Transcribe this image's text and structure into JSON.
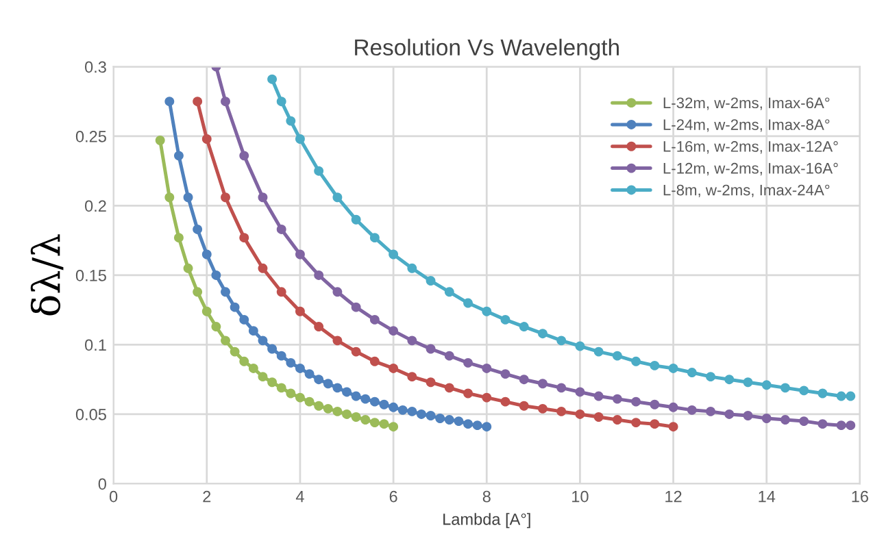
{
  "chart_data": {
    "type": "line",
    "title": "Resolution Vs Wavelength",
    "xlabel": "Lambda [A°]",
    "ylabel": "δλ/λ",
    "xlim": [
      0,
      16
    ],
    "xticks": [
      0,
      2,
      4,
      6,
      8,
      10,
      12,
      14,
      16
    ],
    "ylim": [
      0,
      0.3
    ],
    "yticks": [
      0,
      0.05,
      0.1,
      0.15,
      0.2,
      0.25,
      0.3
    ],
    "grid": true,
    "legend": "top right",
    "marker": "circle",
    "line_style": "solid",
    "series": [
      {
        "name": "L-32m, w-2ms, Imax-6A°",
        "color": "#9bbb59",
        "x": [
          1.0,
          1.2,
          1.4,
          1.6,
          1.8,
          2.0,
          2.2,
          2.4,
          2.6,
          2.8,
          3.0,
          3.2,
          3.4,
          3.6,
          3.8,
          4.0,
          4.2,
          4.4,
          4.6,
          4.8,
          5.0,
          5.2,
          5.4,
          5.6,
          5.8,
          6.0
        ],
        "values": [
          0.247,
          0.206,
          0.177,
          0.155,
          0.138,
          0.124,
          0.113,
          0.103,
          0.095,
          0.088,
          0.083,
          0.077,
          0.073,
          0.069,
          0.065,
          0.062,
          0.059,
          0.056,
          0.054,
          0.052,
          0.05,
          0.048,
          0.046,
          0.044,
          0.043,
          0.041
        ]
      },
      {
        "name": "L-24m, w-2ms, Imax-8A°",
        "color": "#4f81bd",
        "x": [
          1.2,
          1.4,
          1.6,
          1.8,
          2.0,
          2.2,
          2.4,
          2.6,
          2.8,
          3.0,
          3.2,
          3.4,
          3.6,
          3.8,
          4.0,
          4.2,
          4.4,
          4.6,
          4.8,
          5.0,
          5.2,
          5.4,
          5.6,
          5.8,
          6.0,
          6.2,
          6.4,
          6.6,
          6.8,
          7.0,
          7.2,
          7.4,
          7.6,
          7.8,
          8.0
        ],
        "values": [
          0.275,
          0.236,
          0.206,
          0.183,
          0.165,
          0.15,
          0.138,
          0.127,
          0.118,
          0.11,
          0.103,
          0.097,
          0.092,
          0.087,
          0.083,
          0.079,
          0.075,
          0.072,
          0.069,
          0.066,
          0.063,
          0.061,
          0.059,
          0.057,
          0.055,
          0.053,
          0.052,
          0.05,
          0.049,
          0.047,
          0.046,
          0.045,
          0.043,
          0.042,
          0.041
        ]
      },
      {
        "name": "L-16m, w-2ms, Imax-12A°",
        "color": "#c0504d",
        "x": [
          1.8,
          2.0,
          2.4,
          2.8,
          3.2,
          3.6,
          4.0,
          4.4,
          4.8,
          5.2,
          5.6,
          6.0,
          6.4,
          6.8,
          7.2,
          7.6,
          8.0,
          8.4,
          8.8,
          9.2,
          9.6,
          10.0,
          10.4,
          10.8,
          11.2,
          11.6,
          12.0
        ],
        "values": [
          0.275,
          0.248,
          0.206,
          0.177,
          0.155,
          0.138,
          0.124,
          0.113,
          0.103,
          0.095,
          0.088,
          0.083,
          0.077,
          0.073,
          0.069,
          0.065,
          0.062,
          0.059,
          0.056,
          0.054,
          0.052,
          0.05,
          0.048,
          0.046,
          0.044,
          0.043,
          0.041
        ]
      },
      {
        "name": "L-12m, w-2ms, Imax-16A°",
        "color": "#8064a2",
        "x": [
          2.2,
          2.4,
          2.8,
          3.2,
          3.6,
          4.0,
          4.4,
          4.8,
          5.2,
          5.6,
          6.0,
          6.4,
          6.8,
          7.2,
          7.6,
          8.0,
          8.4,
          8.8,
          9.2,
          9.6,
          10.0,
          10.4,
          10.8,
          11.2,
          11.6,
          12.0,
          12.4,
          12.8,
          13.2,
          13.6,
          14.0,
          14.4,
          14.8,
          15.2,
          15.6,
          15.8
        ],
        "values": [
          0.3,
          0.275,
          0.236,
          0.206,
          0.183,
          0.165,
          0.15,
          0.138,
          0.127,
          0.118,
          0.11,
          0.103,
          0.097,
          0.092,
          0.087,
          0.083,
          0.079,
          0.075,
          0.072,
          0.069,
          0.066,
          0.063,
          0.061,
          0.059,
          0.057,
          0.055,
          0.053,
          0.052,
          0.05,
          0.049,
          0.047,
          0.046,
          0.045,
          0.043,
          0.042,
          0.042
        ]
      },
      {
        "name": "L-8m, w-2ms, Imax-24A°",
        "color": "#4bacc6",
        "x": [
          3.4,
          3.6,
          3.8,
          4.0,
          4.4,
          4.8,
          5.2,
          5.6,
          6.0,
          6.4,
          6.8,
          7.2,
          7.6,
          8.0,
          8.4,
          8.8,
          9.2,
          9.6,
          10.0,
          10.4,
          10.8,
          11.2,
          11.6,
          12.0,
          12.4,
          12.8,
          13.2,
          13.6,
          14.0,
          14.4,
          14.8,
          15.2,
          15.6,
          15.8
        ],
        "values": [
          0.291,
          0.275,
          0.261,
          0.248,
          0.225,
          0.206,
          0.19,
          0.177,
          0.165,
          0.155,
          0.146,
          0.138,
          0.13,
          0.124,
          0.118,
          0.113,
          0.108,
          0.103,
          0.099,
          0.095,
          0.092,
          0.088,
          0.085,
          0.083,
          0.08,
          0.077,
          0.075,
          0.073,
          0.071,
          0.069,
          0.067,
          0.065,
          0.063,
          0.063
        ]
      }
    ]
  }
}
